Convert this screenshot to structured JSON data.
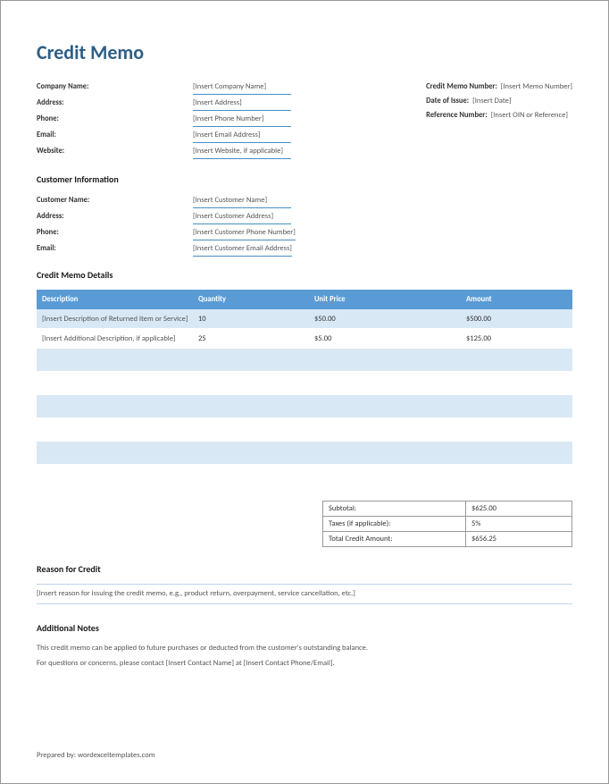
{
  "title": "Credit Memo",
  "company": {
    "fields": [
      {
        "label": "Company Name:",
        "value": "[Insert Company Name]"
      },
      {
        "label": "Address:",
        "value": "[Insert Address]"
      },
      {
        "label": "Phone:",
        "value": "[Insert Phone Number]"
      },
      {
        "label": "Email:",
        "value": "[Insert Email Address]"
      },
      {
        "label": "Website:",
        "value": "[Insert Website, if applicable]"
      }
    ]
  },
  "memoMeta": {
    "fields": [
      {
        "label": "Credit Memo Number:",
        "value": "[Insert Memo Number]"
      },
      {
        "label": "Date of Issue:",
        "value": "[Insert Date]"
      },
      {
        "label": "Reference Number:",
        "value": "[Insert OIN or Reference]"
      }
    ]
  },
  "customerHeading": "Customer Information",
  "customer": {
    "fields": [
      {
        "label": "Customer Name:",
        "value": "[Insert Customer Name]"
      },
      {
        "label": "Address:",
        "value": "[Insert Customer Address]"
      },
      {
        "label": "Phone:",
        "value": "[Insert Customer Phone Number]"
      },
      {
        "label": "Email:",
        "value": "[Insert Customer Email Address]"
      }
    ]
  },
  "detailsHeading": "Credit Memo Details",
  "tableHeaders": {
    "description": "Description",
    "quantity": "Quantity",
    "unitPrice": "Unit Price",
    "amount": "Amount"
  },
  "rows": [
    {
      "description": "[Insert Description of Returned Item or Service]",
      "quantity": "10",
      "unitPrice": "$50.00",
      "amount": "$500.00"
    },
    {
      "description": "[Insert Additional Description, if applicable]",
      "quantity": "25",
      "unitPrice": "$5.00",
      "amount": "$125.00"
    },
    {
      "description": "",
      "quantity": "",
      "unitPrice": "",
      "amount": ""
    },
    {
      "description": "",
      "quantity": "",
      "unitPrice": "",
      "amount": ""
    },
    {
      "description": "",
      "quantity": "",
      "unitPrice": "",
      "amount": ""
    },
    {
      "description": "",
      "quantity": "",
      "unitPrice": "",
      "amount": ""
    },
    {
      "description": "",
      "quantity": "",
      "unitPrice": "",
      "amount": ""
    }
  ],
  "totals": [
    {
      "label": "Subtotal:",
      "value": "$625.00"
    },
    {
      "label": "Taxes (if applicable):",
      "value": "5%"
    },
    {
      "label": "Total Credit Amount:",
      "value": "$656.25"
    }
  ],
  "reasonHeading": "Reason for Credit",
  "reasonText": "[Insert reason for issuing the credit memo, e.g., product return, overpayment, service cancellation, etc.]",
  "notesHeading": "Additional Notes",
  "notesLine1": "This credit memo can be applied to future purchases or deducted from the customer's outstanding balance.",
  "notesLine2": "For questions or concerns, please contact [Insert Contact Name] at [Insert Contact Phone/Email].",
  "footer": "Prepared by: wordexceltemplates.com",
  "colors": {
    "titleColor": "#2d5f86",
    "headerBg": "#5a9bd5",
    "rowAlt": "#d9e8f5",
    "underline": "#4a8ec4"
  }
}
